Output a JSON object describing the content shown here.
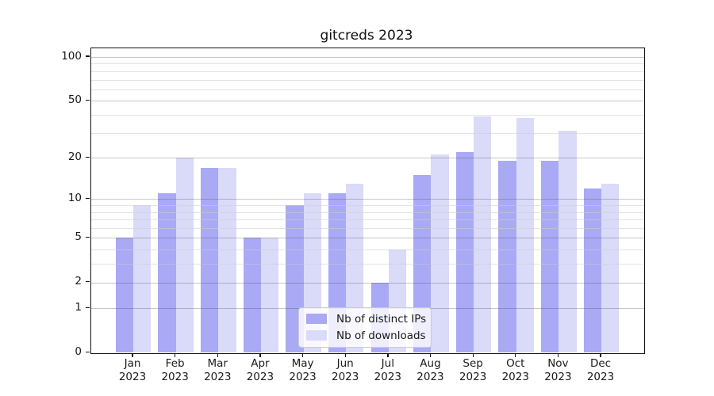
{
  "figure": {
    "background": "#ffffff"
  },
  "chart_data": {
    "type": "bar",
    "title": "gitcreds 2023",
    "categories": [
      "Jan 2023",
      "Feb 2023",
      "Mar 2023",
      "Apr 2023",
      "May 2023",
      "Jun 2023",
      "Jul 2023",
      "Aug 2023",
      "Sep 2023",
      "Oct 2023",
      "Nov 2023",
      "Dec 2023"
    ],
    "x_tick_months": [
      "Jan",
      "Feb",
      "Mar",
      "Apr",
      "May",
      "Jun",
      "Jul",
      "Aug",
      "Sep",
      "Oct",
      "Nov",
      "Dec"
    ],
    "x_tick_year": "2023",
    "series": [
      {
        "name": "Nb of distinct IPs",
        "color": "#a9a9f6",
        "values": [
          5,
          11,
          17,
          5,
          9,
          11,
          2,
          15,
          22,
          19,
          19,
          12
        ]
      },
      {
        "name": "Nb of downloads",
        "color": "#dadaf9",
        "values": [
          9,
          20,
          17,
          5,
          11,
          13,
          4,
          21,
          39,
          38,
          31,
          13
        ]
      }
    ],
    "xlabel": "",
    "ylabel": "",
    "yscale": "log1p",
    "ylim": [
      0,
      114
    ],
    "yticks_labeled": [
      0,
      1,
      2,
      5,
      10,
      20,
      50,
      100
    ],
    "yticks_minor": [
      3,
      4,
      6,
      7,
      8,
      9,
      30,
      40,
      60,
      70,
      80,
      90
    ],
    "grid": "horizontal, major and minor, drawn over bars",
    "legend": {
      "position": "inside bottom-center",
      "labels": [
        "Nb of distinct IPs",
        "Nb of downloads"
      ]
    }
  },
  "colors": {
    "bar_distinct_ips": "#a9a9f6",
    "bar_downloads": "#dadaf9",
    "major_gridline": "#c3c3c3",
    "minor_gridline": "#e9e9e9",
    "spine": "#111111",
    "text": "#1a1a1a",
    "legend_border": "#cccccc"
  }
}
